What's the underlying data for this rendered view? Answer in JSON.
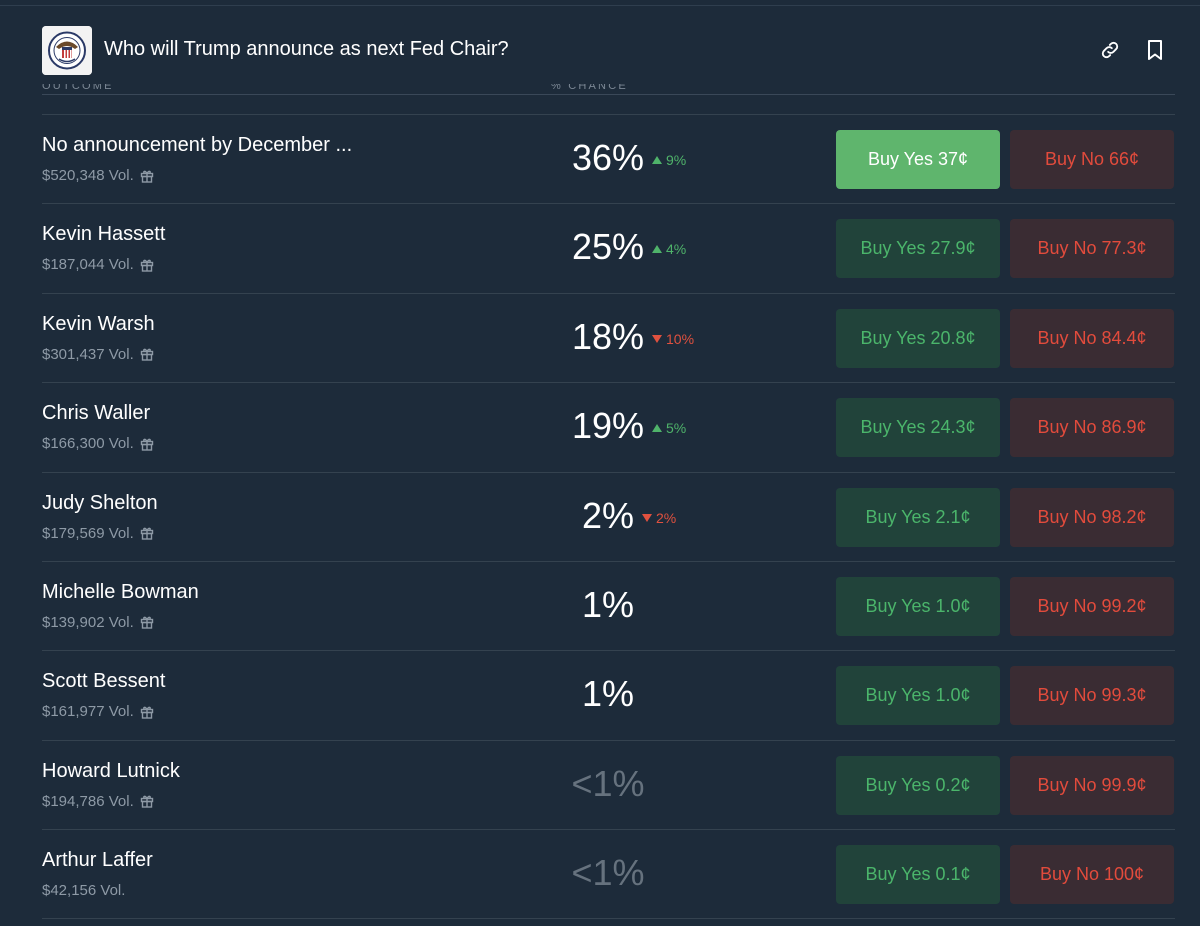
{
  "header": {
    "title": "Who will Trump announce as next Fed Chair?",
    "link_icon": "link-icon",
    "bookmark_icon": "bookmark-icon",
    "logo_icon": "federal-reserve-seal-icon"
  },
  "columns": {
    "outcome": "OUTCOME",
    "chance": "% CHANCE"
  },
  "colors": {
    "background": "#1d2b3a",
    "yes_bg": "#21433a",
    "yes_text": "#4bb56b",
    "yes_active_bg": "#5fb56d",
    "no_bg": "#3a2c33",
    "no_text": "#e24b3c",
    "up": "#4fb36a",
    "down": "#e0513f"
  },
  "rows": [
    {
      "name": "No announcement by December ...",
      "vol": "$520,348 Vol.",
      "gift": true,
      "pct": "36%",
      "faded": false,
      "delta": "9%",
      "dir": "up",
      "yes": "Buy Yes 37¢",
      "no": "Buy No 66¢",
      "yes_active": true
    },
    {
      "name": "Kevin Hassett",
      "vol": "$187,044 Vol.",
      "gift": true,
      "pct": "25%",
      "faded": false,
      "delta": "4%",
      "dir": "up",
      "yes": "Buy Yes 27.9¢",
      "no": "Buy No 77.3¢",
      "yes_active": false
    },
    {
      "name": "Kevin Warsh",
      "vol": "$301,437 Vol.",
      "gift": true,
      "pct": "18%",
      "faded": false,
      "delta": "10%",
      "dir": "down",
      "yes": "Buy Yes 20.8¢",
      "no": "Buy No 84.4¢",
      "yes_active": false
    },
    {
      "name": "Chris Waller",
      "vol": "$166,300 Vol.",
      "gift": true,
      "pct": "19%",
      "faded": false,
      "delta": "5%",
      "dir": "up",
      "yes": "Buy Yes 24.3¢",
      "no": "Buy No 86.9¢",
      "yes_active": false
    },
    {
      "name": "Judy Shelton",
      "vol": "$179,569 Vol.",
      "gift": true,
      "pct": "2%",
      "faded": false,
      "delta": "2%",
      "dir": "down",
      "yes": "Buy Yes 2.1¢",
      "no": "Buy No 98.2¢",
      "yes_active": false
    },
    {
      "name": "Michelle Bowman",
      "vol": "$139,902 Vol.",
      "gift": true,
      "pct": "1%",
      "faded": false,
      "delta": "",
      "dir": "",
      "yes": "Buy Yes 1.0¢",
      "no": "Buy No 99.2¢",
      "yes_active": false
    },
    {
      "name": "Scott Bessent",
      "vol": "$161,977 Vol.",
      "gift": true,
      "pct": "1%",
      "faded": false,
      "delta": "",
      "dir": "",
      "yes": "Buy Yes 1.0¢",
      "no": "Buy No 99.3¢",
      "yes_active": false
    },
    {
      "name": "Howard Lutnick",
      "vol": "$194,786 Vol.",
      "gift": true,
      "pct": "<1%",
      "faded": true,
      "delta": "",
      "dir": "",
      "yes": "Buy Yes 0.2¢",
      "no": "Buy No 99.9¢",
      "yes_active": false
    },
    {
      "name": "Arthur Laffer",
      "vol": "$42,156 Vol.",
      "gift": false,
      "pct": "<1%",
      "faded": true,
      "delta": "",
      "dir": "",
      "yes": "Buy Yes 0.1¢",
      "no": "Buy No 100¢",
      "yes_active": false
    }
  ]
}
